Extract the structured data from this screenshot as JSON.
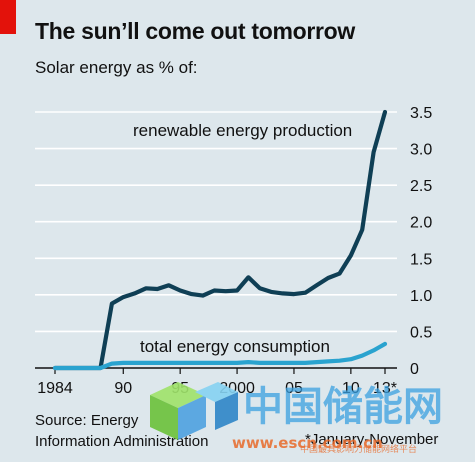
{
  "header": {
    "title": "The sun’ll come out tomorrow",
    "subtitle": "Solar energy as % of:"
  },
  "source": {
    "line1": "Source: Energy",
    "line2": "Information Administration",
    "footnote": "*January-November"
  },
  "watermark": {
    "text": "中国储能网",
    "url": "www.escn.com.cn",
    "sub": "中国最具影响力储能网络平台"
  },
  "colors": {
    "background": "#dde7ec",
    "renewable_series": "#0f3f55",
    "consumption_series": "#2aa3cf",
    "accent_tag": "#e3120b"
  },
  "chart_data": {
    "type": "line",
    "xlim": [
      1984,
      2013
    ],
    "ylim": [
      0,
      3.5
    ],
    "x_ticks": [
      {
        "value": 1984,
        "label": "1984"
      },
      {
        "value": 1990,
        "label": "90"
      },
      {
        "value": 1995,
        "label": "95"
      },
      {
        "value": 2000,
        "label": "2000"
      },
      {
        "value": 2005,
        "label": "05"
      },
      {
        "value": 2010,
        "label": "10"
      },
      {
        "value": 2013,
        "label": "13*"
      }
    ],
    "y_ticks": [
      {
        "value": 0,
        "label": "0"
      },
      {
        "value": 0.5,
        "label": "0.5"
      },
      {
        "value": 1.0,
        "label": "1.0"
      },
      {
        "value": 1.5,
        "label": "1.5"
      },
      {
        "value": 2.0,
        "label": "2.0"
      },
      {
        "value": 2.5,
        "label": "2.5"
      },
      {
        "value": 3.0,
        "label": "3.0"
      },
      {
        "value": 3.5,
        "label": "3.5"
      }
    ],
    "grid": true,
    "y_axis_side": "right",
    "series": [
      {
        "name": "renewable energy production",
        "x": [
          1984,
          1985,
          1986,
          1987,
          1988,
          1989,
          1990,
          1991,
          1992,
          1993,
          1994,
          1995,
          1996,
          1997,
          1998,
          1999,
          2000,
          2001,
          2002,
          2003,
          2004,
          2005,
          2006,
          2007,
          2008,
          2009,
          2010,
          2011,
          2012,
          2013
        ],
        "values": [
          0.0,
          0.0,
          0.0,
          0.0,
          0.0,
          0.88,
          0.97,
          1.02,
          1.09,
          1.08,
          1.13,
          1.06,
          1.01,
          0.99,
          1.06,
          1.05,
          1.06,
          1.24,
          1.09,
          1.04,
          1.02,
          1.01,
          1.03,
          1.13,
          1.23,
          1.29,
          1.54,
          1.89,
          2.95,
          3.5
        ]
      },
      {
        "name": "total energy consumption",
        "x": [
          1984,
          1985,
          1986,
          1987,
          1988,
          1989,
          1990,
          1991,
          1992,
          1993,
          1994,
          1995,
          1996,
          1997,
          1998,
          1999,
          2000,
          2001,
          2002,
          2003,
          2004,
          2005,
          2006,
          2007,
          2008,
          2009,
          2010,
          2011,
          2012,
          2013
        ],
        "values": [
          0.0,
          0.0,
          0.0,
          0.0,
          0.0,
          0.06,
          0.07,
          0.07,
          0.07,
          0.07,
          0.07,
          0.07,
          0.07,
          0.07,
          0.07,
          0.07,
          0.07,
          0.08,
          0.07,
          0.07,
          0.07,
          0.07,
          0.07,
          0.08,
          0.09,
          0.1,
          0.12,
          0.17,
          0.24,
          0.33
        ]
      }
    ]
  }
}
